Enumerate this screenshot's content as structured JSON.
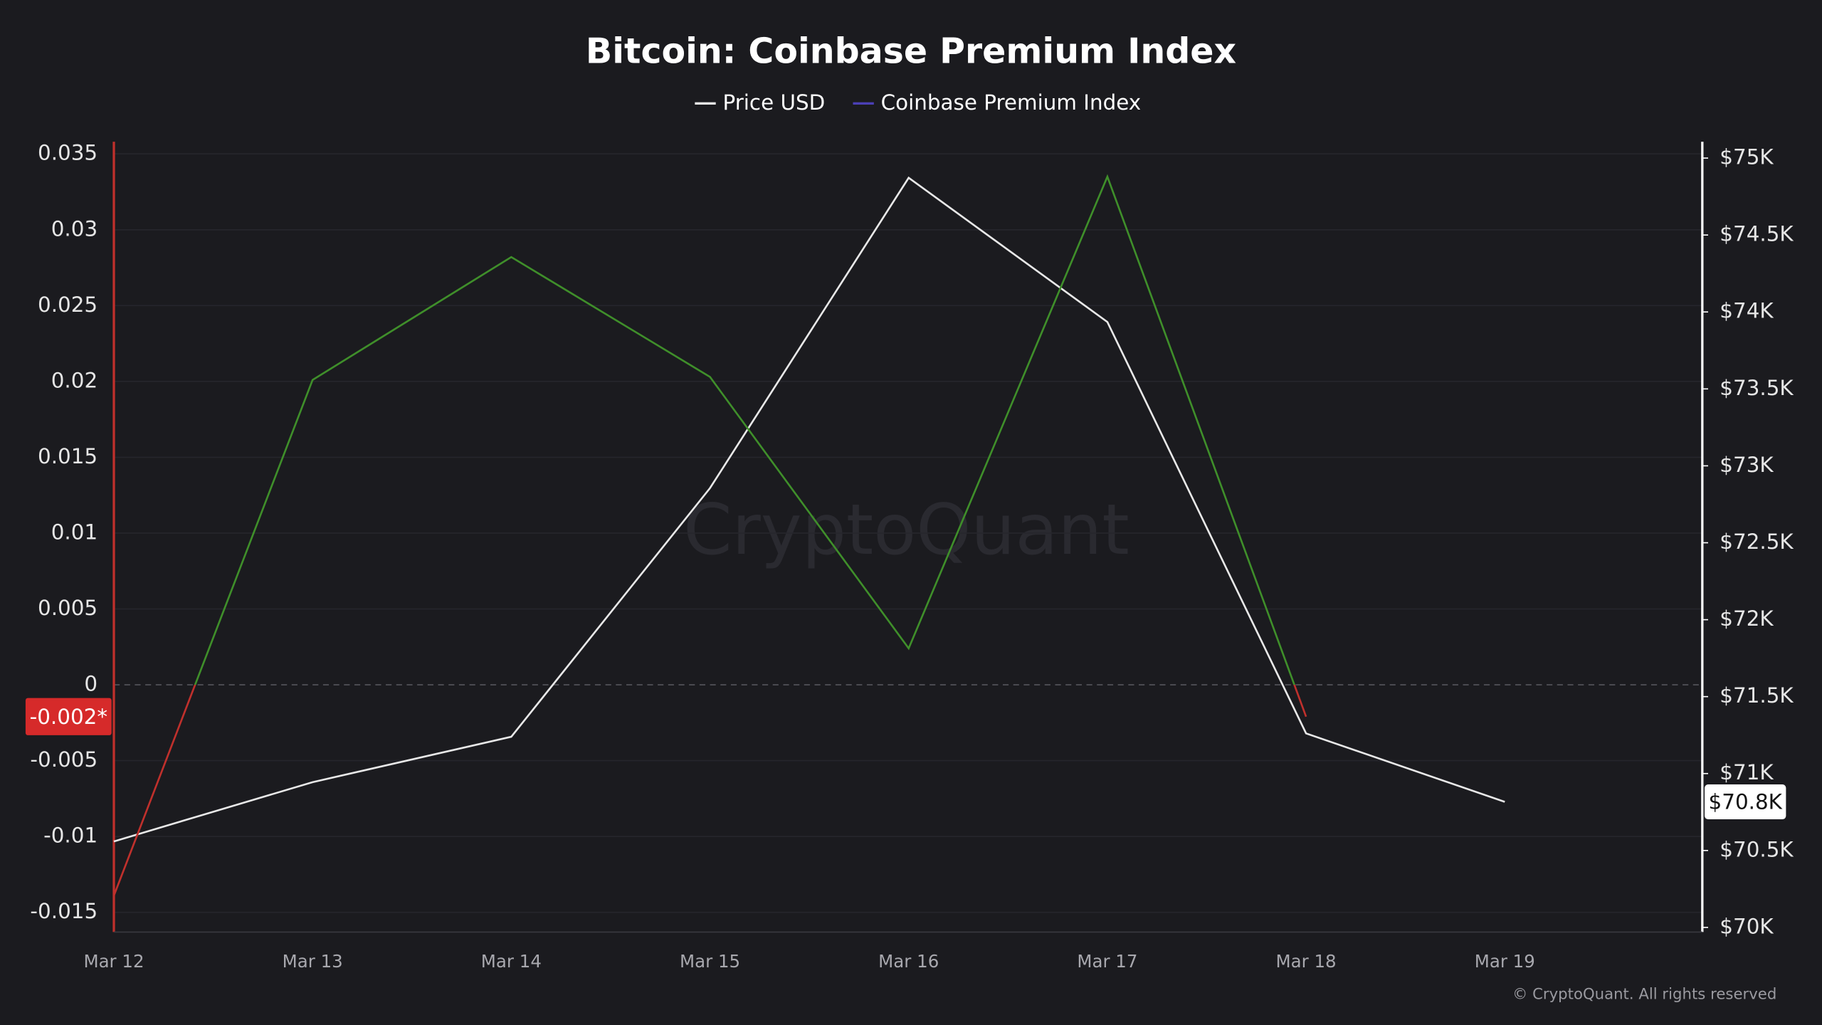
{
  "chart_data": {
    "type": "line",
    "title": "Bitcoin: Coinbase Premium Index",
    "watermark": "CryptoQuant",
    "footer": "© CryptoQuant. All rights reserved",
    "categories": [
      "Mar 12",
      "Mar 13",
      "Mar 14",
      "Mar 15",
      "Mar 16",
      "Mar 17",
      "Mar 18",
      "Mar 19"
    ],
    "series": [
      {
        "name": "Price USD",
        "color": "#e8e8e8",
        "axis": "y2",
        "values": [
          70559,
          70944,
          71239,
          72855,
          74872,
          73935,
          71261,
          70816
        ],
        "value_labels": [
          null,
          null,
          null,
          null,
          null,
          null,
          null,
          "$70.8K"
        ]
      },
      {
        "name": "Coinbase Premium Index",
        "color": "#4b3fb5",
        "positive_color": "#3f8f2a",
        "negative_color": "#c0302c",
        "values": [
          -0.0139,
          0.0201,
          0.0282,
          0.0203,
          0.0024,
          0.0335,
          -0.0021,
          null
        ],
        "value_labels": [
          null,
          null,
          null,
          null,
          null,
          null,
          "-0.002*",
          null
        ]
      }
    ],
    "ylim": [
      -0.0163,
      0.0358
    ],
    "yticks": [
      -0.015,
      -0.01,
      -0.005,
      0,
      0.005,
      0.01,
      0.015,
      0.02,
      0.025,
      0.03,
      0.035
    ],
    "y2lim": [
      69970,
      75106
    ],
    "y2ticks": [
      {
        "value": 70000,
        "label": "$70K"
      },
      {
        "value": 70500,
        "label": "$70.5K"
      },
      {
        "value": 71000,
        "label": "$71K"
      },
      {
        "value": 71500,
        "label": "$71.5K"
      },
      {
        "value": 72000,
        "label": "$72K"
      },
      {
        "value": 72500,
        "label": "$72.5K"
      },
      {
        "value": 73000,
        "label": "$73K"
      },
      {
        "value": 73500,
        "label": "$73.5K"
      },
      {
        "value": 74000,
        "label": "$74K"
      },
      {
        "value": 74500,
        "label": "$74.5K"
      },
      {
        "value": 75000,
        "label": "$75K"
      }
    ],
    "grid": true,
    "legend": "top"
  }
}
